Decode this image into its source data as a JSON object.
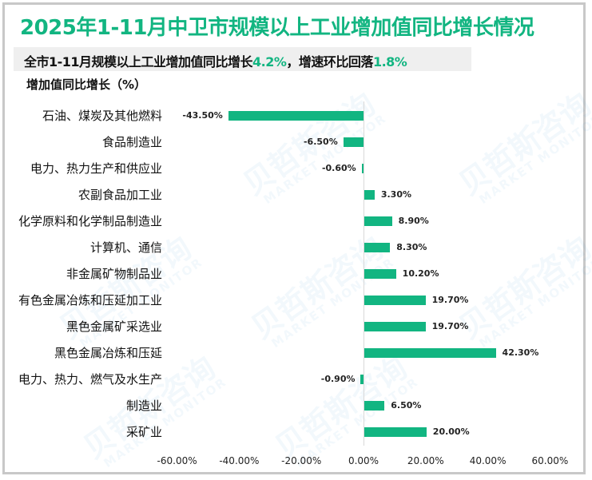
{
  "title": "2025年1-11月中卫市规模以上工业增加值同比增长情况",
  "subtitle": {
    "prefix": "全市1-11月规模以上工业增加值同比增长",
    "growth": "4.2%",
    "middle": "，增速环比回落",
    "drop": "1.8%"
  },
  "watermark": {
    "cn": "贝哲斯咨询",
    "en": "MARKET MONITOR"
  },
  "colors": {
    "accent": "#12b581",
    "border": "#c8c8c8",
    "subtitle_bg": "#efefef"
  },
  "chart_data": {
    "type": "bar",
    "orientation": "horizontal",
    "title": "2025年1-11月中卫市规模以上工业增加值同比增长情况",
    "subtitle": "全市1-11月规模以上工业增加值同比增长4.2%，增速环比回落1.8%",
    "xlabel": "",
    "ylabel": "增加值同比增长（%）",
    "xlim": [
      -60,
      60
    ],
    "x_ticks": [
      "-60.00%",
      "-40.00%",
      "-20.00%",
      "0.00%",
      "20.00%",
      "40.00%",
      "60.00%"
    ],
    "grid": false,
    "legend": null,
    "categories": [
      "石油、煤炭及其他燃料",
      "食品制造业",
      "电力、热力生产和供应业",
      "农副食品加工业",
      "化学原料和化学制品制造业",
      "计算机、通信",
      "非金属矿物制品业",
      "有色金属冶炼和压延加工业",
      "黑色金属矿采选业",
      "黑色金属冶炼和压延",
      "电力、热力、燃气及水生产",
      "制造业",
      "采矿业"
    ],
    "values": [
      -43.5,
      -6.5,
      -0.6,
      3.3,
      8.9,
      8.3,
      10.2,
      19.7,
      19.7,
      42.3,
      -0.9,
      6.5,
      20.0
    ],
    "value_labels": [
      "-43.50%",
      "-6.50%",
      "-0.60%",
      "3.30%",
      "8.90%",
      "8.30%",
      "10.20%",
      "19.70%",
      "19.70%",
      "42.30%",
      "-0.90%",
      "6.50%",
      "20.00%"
    ],
    "bar_color": "#12b581"
  }
}
